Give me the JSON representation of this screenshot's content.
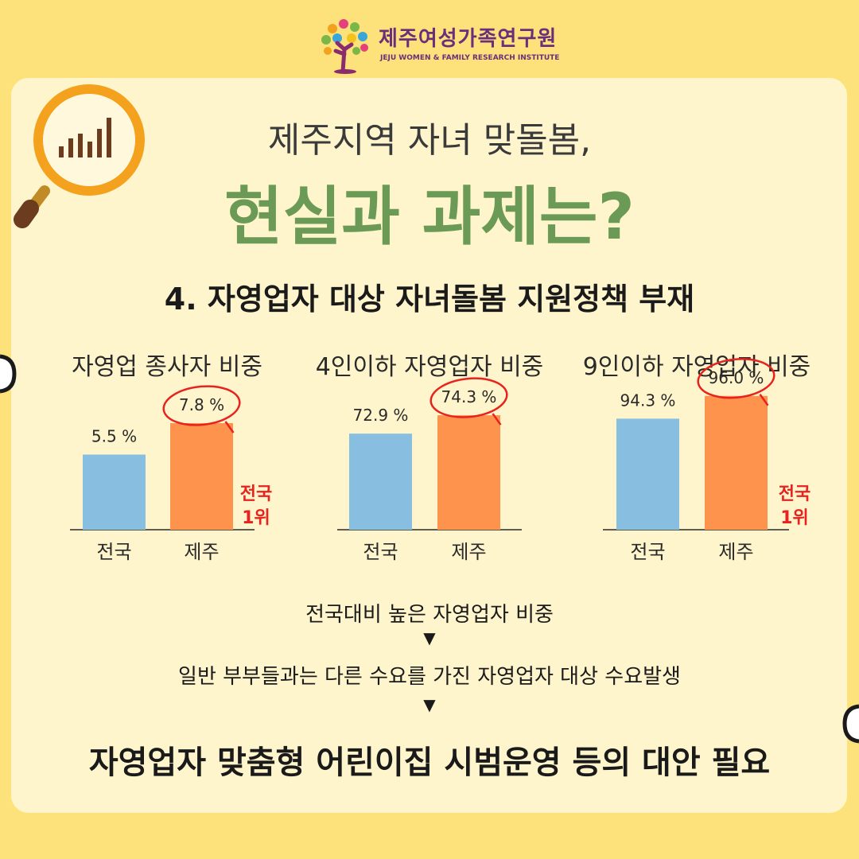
{
  "logo": {
    "name_ko": "제주여성가족연구원",
    "name_en": "JEJU WOMEN & FAMILY RESEARCH INSTITUTE",
    "icon": "tree-logo-icon"
  },
  "header": {
    "title_line1": "제주지역 자녀 맞돌봄,",
    "title_line2": "현실과 과제는?",
    "icon": "magnifier-chart-icon"
  },
  "section_title": "4. 자영업자 대상 자녀돌봄 지원정책 부재",
  "colors": {
    "national_bar": "#88bfe0",
    "jeju_bar": "#fd934d",
    "title_green": "#6a9a55",
    "highlight_red": "#e8221e"
  },
  "chart_data": [
    {
      "type": "bar",
      "title": "자영업 종사자 비중",
      "categories": [
        "전국",
        "제주"
      ],
      "values": [
        5.5,
        7.8
      ],
      "value_labels": [
        "5.5 %",
        "7.8 %"
      ],
      "highlight_index": 1,
      "annotation": "전국\n1위",
      "unit": "%"
    },
    {
      "type": "bar",
      "title": "4인이하 자영업자 비중",
      "categories": [
        "전국",
        "제주"
      ],
      "values": [
        72.9,
        74.3
      ],
      "value_labels": [
        "72.9 %",
        "74.3 %"
      ],
      "highlight_index": 1,
      "annotation": "",
      "unit": "%"
    },
    {
      "type": "bar",
      "title": "9인이하 자영업자 비중",
      "categories": [
        "전국",
        "제주"
      ],
      "values": [
        94.3,
        96.0
      ],
      "value_labels": [
        "94.3 %",
        "96.0 %"
      ],
      "highlight_index": 1,
      "annotation": "전국\n1위",
      "unit": "%"
    }
  ],
  "flow": {
    "step1": "전국대비 높은 자영업자 비중",
    "arrow": "▼",
    "step2": "일반 부부들과는 다른 수요를 가진 자영업자 대상 수요발생",
    "conclusion": "자영업자 맞춤형 어린이집 시범운영 등의 대안 필요"
  }
}
